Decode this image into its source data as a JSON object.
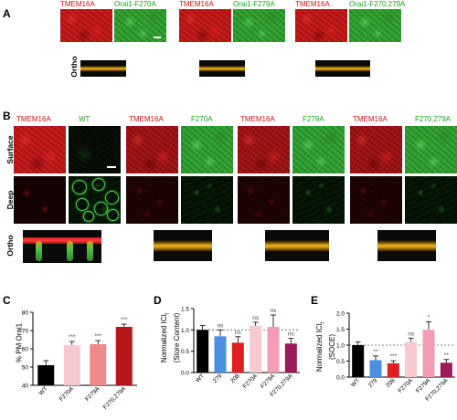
{
  "panels": {
    "a": "A",
    "b": "B",
    "c": "C",
    "d": "D",
    "e": "E"
  },
  "panel_a": {
    "groups": [
      {
        "red_label": "TMEM16A",
        "green_label": "Orai1-F270A"
      },
      {
        "red_label": "TMEM16A",
        "green_label": "Orai1-F279A"
      },
      {
        "red_label": "TMEM16A",
        "green_label": "Orai1-F270,279A"
      }
    ],
    "ortho_label": "Ortho"
  },
  "panel_b": {
    "groups": [
      {
        "red_label": "TMEM16A",
        "green_label": "WT"
      },
      {
        "red_label": "TMEM16A",
        "green_label": "F270A"
      },
      {
        "red_label": "TMEM16A",
        "green_label": "F279A"
      },
      {
        "red_label": "TMEM16A",
        "green_label": "F270,279A"
      }
    ],
    "row_labels": [
      "Surface",
      "Deep"
    ],
    "ortho_label": "Ortho"
  },
  "colors": {
    "red_channel": "#c41818",
    "green_channel": "#2fa02f",
    "red_label": "#d01010",
    "green_label": "#16a616"
  },
  "chart_data": [
    {
      "type": "bar",
      "panel": "C",
      "ylabel": "% PM Orai1",
      "ylim": [
        40,
        80
      ],
      "yticks": [
        40,
        50,
        60,
        70,
        80
      ],
      "categories": [
        "WT",
        "F270A",
        "F279A",
        "F270,279A"
      ],
      "values": [
        51,
        62,
        62.5,
        72
      ],
      "errors": [
        2.5,
        2,
        2,
        1.5
      ],
      "annotations": [
        "",
        "***",
        "***",
        "***"
      ],
      "colors": [
        "#000000",
        "#f7c9cf",
        "#f08a8a",
        "#b51818"
      ],
      "grid": false
    },
    {
      "type": "bar",
      "panel": "D",
      "ylabel": "Normalized ICl",
      "ylabel_sub": "t",
      "ylabel_line2": "(Store Content)",
      "ylim": [
        0,
        1.5
      ],
      "yticks": [
        "0.0",
        "0.5",
        "1.0",
        "1.5"
      ],
      "categories": [
        "WT",
        "279",
        "208",
        "F270A",
        "F279A",
        "F270,279A"
      ],
      "values": [
        1.0,
        0.85,
        0.7,
        1.1,
        1.07,
        0.68
      ],
      "errors": [
        0.1,
        0.15,
        0.14,
        0.08,
        0.28,
        0.12
      ],
      "annotations": [
        "",
        "ns",
        "ns",
        "ns",
        "ns",
        "ns"
      ],
      "reference_line": 1.0,
      "colors": [
        "#000000",
        "#4a8fe0",
        "#e02020",
        "#f7c9cf",
        "#f29cb5",
        "#9a1a5a"
      ],
      "grid": false
    },
    {
      "type": "bar",
      "panel": "E",
      "ylabel": "Normalized ICl",
      "ylabel_sub": "t",
      "ylabel_line2": "(SOCE)",
      "ylim": [
        0,
        2.0
      ],
      "yticks": [
        "0.0",
        "0.5",
        "1.0",
        "1.5",
        "2.0"
      ],
      "categories": [
        "WT",
        "279",
        "208",
        "F270A",
        "F279A",
        "F270,279A"
      ],
      "values": [
        1.0,
        0.53,
        0.43,
        1.1,
        1.48,
        0.45
      ],
      "errors": [
        0.1,
        0.13,
        0.08,
        0.12,
        0.25,
        0.1
      ],
      "annotations": [
        "",
        "**",
        "***",
        "ns",
        "*",
        "**"
      ],
      "reference_line": 1.0,
      "colors": [
        "#000000",
        "#4a8fe0",
        "#e02020",
        "#f7c9cf",
        "#f29cb5",
        "#9a1a5a"
      ],
      "grid": false
    }
  ]
}
